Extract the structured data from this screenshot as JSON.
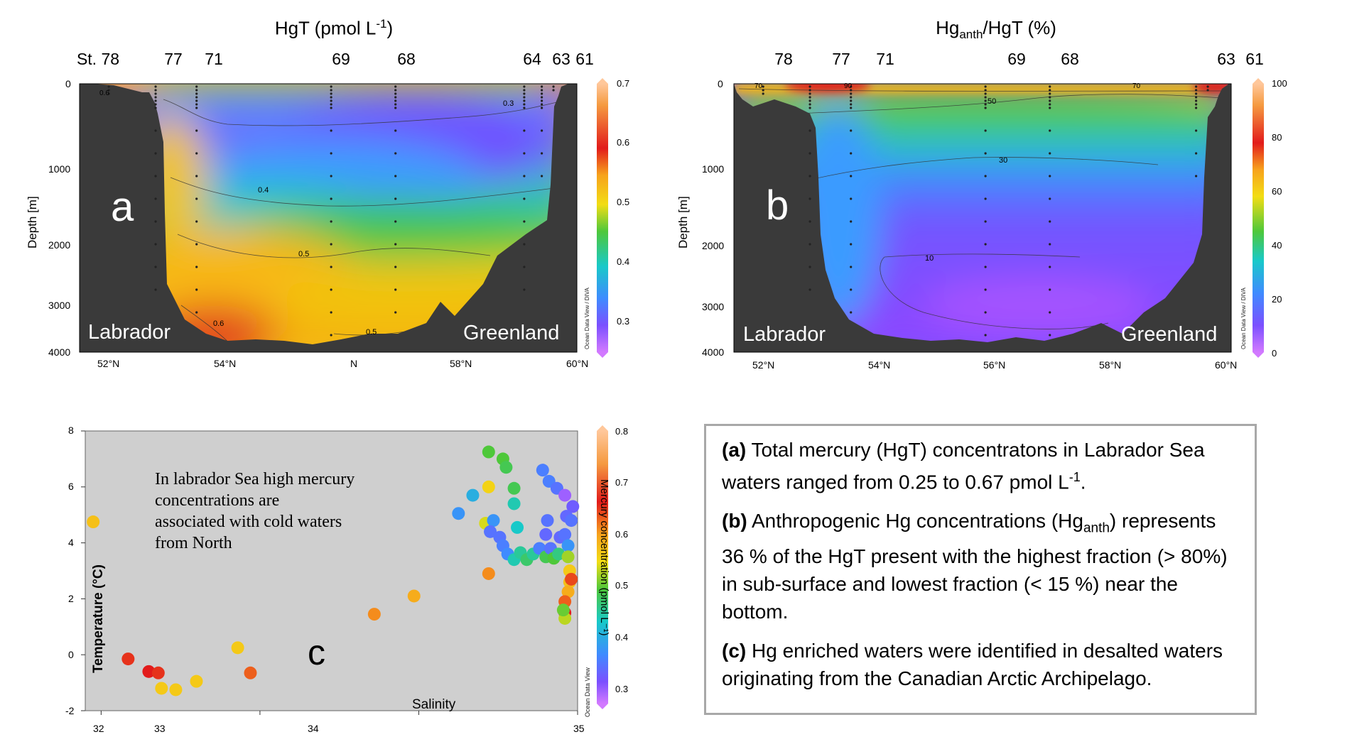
{
  "panel_a": {
    "title": "HgT (pmol L",
    "title_sup": "-1",
    "title_close": ")",
    "station_prefix": "St. 78",
    "stations": [
      "77",
      "71",
      "69",
      "68",
      "64",
      "63",
      "61"
    ],
    "ylabel": "Depth [m]",
    "yticks": [
      "0",
      "1000",
      "2000",
      "3000",
      "4000"
    ],
    "xticks": [
      "52°N",
      "54°N",
      "N",
      "58°N",
      "60°N"
    ],
    "letter": "a",
    "left_region": "Labrador",
    "right_region": "Greenland",
    "credit": "Ocean Data View / DIVA",
    "colorbar": [
      "0.7",
      "0.6",
      "0.5",
      "0.4",
      "0.3"
    ],
    "contours": [
      "0.6",
      "0.5",
      "0.3",
      "0.4",
      "0.5",
      "0.6",
      "0.5"
    ]
  },
  "panel_b": {
    "title": "Hg",
    "title_sub": "anth",
    "title_rest": "/HgT (%)",
    "stations": [
      "78",
      "77",
      "71",
      "69",
      "68",
      "63",
      "61"
    ],
    "ylabel": "Depth [m]",
    "yticks": [
      "0",
      "1000",
      "2000",
      "3000",
      "4000"
    ],
    "xticks": [
      "52°N",
      "54°N",
      "56°N",
      "58°N",
      "60°N"
    ],
    "letter": "b",
    "left_region": "Labrador",
    "right_region": "Greenland",
    "credit": "Ocean Data View / DIVA",
    "colorbar": [
      "100",
      "80",
      "60",
      "40",
      "20",
      "0"
    ],
    "contours": [
      "70",
      "90",
      "70",
      "50",
      "30",
      "10"
    ]
  },
  "panel_c": {
    "letter": "c",
    "ylabel": "Temperature (°C)",
    "xlabel": "Salinity",
    "annotation": "In labrador Sea high mercury\nconcentrations are\nassociated with cold waters\nfrom North",
    "credit": "Ocean Data View",
    "colorbar_title": "Mercury concentration (pmol L⁻¹)",
    "colorbar": [
      "0.8",
      "0.7",
      "0.6",
      "0.5",
      "0.4",
      "0.3"
    ]
  },
  "caption": {
    "a_label": "(a)",
    "a_text": " Total mercury (HgT) concentratons in Labrador Sea waters ranged from 0.25 to 0.67 pmol L",
    "a_sup": "-1",
    "a_end": ".",
    "b_label": "(b)",
    "b_text1": " Anthropogenic Hg concentrations (Hg",
    "b_sub": "anth",
    "b_text2": ") represents 36 % of the HgT present with the highest fraction (> 80%) in sub-surface and lowest fraction (< 15 %) near the bottom.",
    "c_label": "(c)",
    "c_text": " Hg enriched waters were identified in desalted waters originating from the Canadian Arctic Archipelago."
  },
  "chart_data": [
    {
      "type": "heatmap",
      "panel": "a",
      "title": "HgT (pmol L-1)",
      "xlabel": "",
      "ylabel": "Depth [m]",
      "xlim": [
        51.5,
        60
      ],
      "ylim": [
        4000,
        0
      ],
      "colorbar_range": [
        0.25,
        0.7
      ],
      "station_latitudes": [
        52.0,
        52.8,
        53.5,
        55.8,
        56.9,
        59.1,
        59.4,
        59.6
      ],
      "station_names": [
        "78",
        "77",
        "71",
        "69",
        "68",
        "64",
        "63",
        "61"
      ]
    },
    {
      "type": "heatmap",
      "panel": "b",
      "title": "Hganth/HgT (%)",
      "xlabel": "",
      "ylabel": "Depth [m]",
      "xlim": [
        51.5,
        60
      ],
      "ylim": [
        4000,
        0
      ],
      "colorbar_range": [
        0,
        100
      ],
      "station_latitudes": [
        52.0,
        52.8,
        53.5,
        55.8,
        56.9,
        59.4,
        59.6
      ],
      "station_names": [
        "78",
        "77",
        "71",
        "69",
        "68",
        "63",
        "61"
      ]
    },
    {
      "type": "scatter",
      "panel": "c",
      "xlabel": "Salinity",
      "ylabel": "Temperature (°C)",
      "xlim": [
        31.9,
        35.0
      ],
      "ylim": [
        -2,
        8
      ],
      "xticks": [
        32,
        33,
        34,
        35
      ],
      "yticks": [
        -2,
        0,
        2,
        4,
        6,
        8
      ],
      "colorbar_range": [
        0.25,
        0.8
      ],
      "points": [
        {
          "s": 31.95,
          "t": 4.75,
          "hg": 0.57
        },
        {
          "s": 32.17,
          "t": -0.15,
          "hg": 0.65
        },
        {
          "s": 32.3,
          "t": -0.6,
          "hg": 0.66
        },
        {
          "s": 32.36,
          "t": -0.65,
          "hg": 0.65
        },
        {
          "s": 32.38,
          "t": -1.2,
          "hg": 0.56
        },
        {
          "s": 32.47,
          "t": -1.25,
          "hg": 0.56
        },
        {
          "s": 32.6,
          "t": -0.95,
          "hg": 0.56
        },
        {
          "s": 32.86,
          "t": 0.25,
          "hg": 0.56
        },
        {
          "s": 32.94,
          "t": -0.65,
          "hg": 0.63
        },
        {
          "s": 33.72,
          "t": 1.45,
          "hg": 0.61
        },
        {
          "s": 33.97,
          "t": 2.1,
          "hg": 0.59
        },
        {
          "s": 34.25,
          "t": 5.05,
          "hg": 0.36
        },
        {
          "s": 34.34,
          "t": 5.7,
          "hg": 0.39
        },
        {
          "s": 34.44,
          "t": 2.9,
          "hg": 0.61
        },
        {
          "s": 34.44,
          "t": 7.25,
          "hg": 0.48
        },
        {
          "s": 34.53,
          "t": 7.0,
          "hg": 0.48
        },
        {
          "s": 34.55,
          "t": 6.7,
          "hg": 0.47
        },
        {
          "s": 34.6,
          "t": 5.95,
          "hg": 0.47
        },
        {
          "s": 34.6,
          "t": 5.4,
          "hg": 0.43
        },
        {
          "s": 34.62,
          "t": 4.55,
          "hg": 0.42
        },
        {
          "s": 34.44,
          "t": 6.0,
          "hg": 0.55
        },
        {
          "s": 34.42,
          "t": 4.7,
          "hg": 0.53
        },
        {
          "s": 34.47,
          "t": 4.8,
          "hg": 0.36
        },
        {
          "s": 34.45,
          "t": 4.4,
          "hg": 0.33
        },
        {
          "s": 34.51,
          "t": 4.2,
          "hg": 0.33
        },
        {
          "s": 34.53,
          "t": 3.9,
          "hg": 0.34
        },
        {
          "s": 34.56,
          "t": 3.6,
          "hg": 0.35
        },
        {
          "s": 34.6,
          "t": 3.4,
          "hg": 0.43
        },
        {
          "s": 34.64,
          "t": 3.65,
          "hg": 0.44
        },
        {
          "s": 34.68,
          "t": 3.4,
          "hg": 0.46
        },
        {
          "s": 34.72,
          "t": 3.6,
          "hg": 0.44
        },
        {
          "s": 34.76,
          "t": 3.8,
          "hg": 0.34
        },
        {
          "s": 34.8,
          "t": 3.5,
          "hg": 0.47
        },
        {
          "s": 34.83,
          "t": 3.8,
          "hg": 0.33
        },
        {
          "s": 34.85,
          "t": 3.45,
          "hg": 0.48
        },
        {
          "s": 34.88,
          "t": 3.6,
          "hg": 0.45
        },
        {
          "s": 34.78,
          "t": 6.6,
          "hg": 0.34
        },
        {
          "s": 34.82,
          "t": 6.2,
          "hg": 0.34
        },
        {
          "s": 34.87,
          "t": 5.95,
          "hg": 0.33
        },
        {
          "s": 34.81,
          "t": 4.8,
          "hg": 0.33
        },
        {
          "s": 34.8,
          "t": 4.3,
          "hg": 0.32
        },
        {
          "s": 34.89,
          "t": 4.2,
          "hg": 0.32
        },
        {
          "s": 34.92,
          "t": 5.7,
          "hg": 0.28
        },
        {
          "s": 34.97,
          "t": 5.3,
          "hg": 0.31
        },
        {
          "s": 34.93,
          "t": 4.95,
          "hg": 0.32
        },
        {
          "s": 34.96,
          "t": 4.8,
          "hg": 0.33
        },
        {
          "s": 34.92,
          "t": 4.3,
          "hg": 0.33
        },
        {
          "s": 34.94,
          "t": 3.9,
          "hg": 0.36
        },
        {
          "s": 34.94,
          "t": 3.5,
          "hg": 0.51
        },
        {
          "s": 34.95,
          "t": 3.0,
          "hg": 0.56
        },
        {
          "s": 34.95,
          "t": 2.6,
          "hg": 0.57
        },
        {
          "s": 34.96,
          "t": 2.7,
          "hg": 0.64
        },
        {
          "s": 34.94,
          "t": 2.25,
          "hg": 0.59
        },
        {
          "s": 34.92,
          "t": 1.9,
          "hg": 0.63
        },
        {
          "s": 34.92,
          "t": 1.5,
          "hg": 0.66
        },
        {
          "s": 34.92,
          "t": 1.3,
          "hg": 0.52
        },
        {
          "s": 34.91,
          "t": 1.6,
          "hg": 0.49
        }
      ]
    }
  ]
}
